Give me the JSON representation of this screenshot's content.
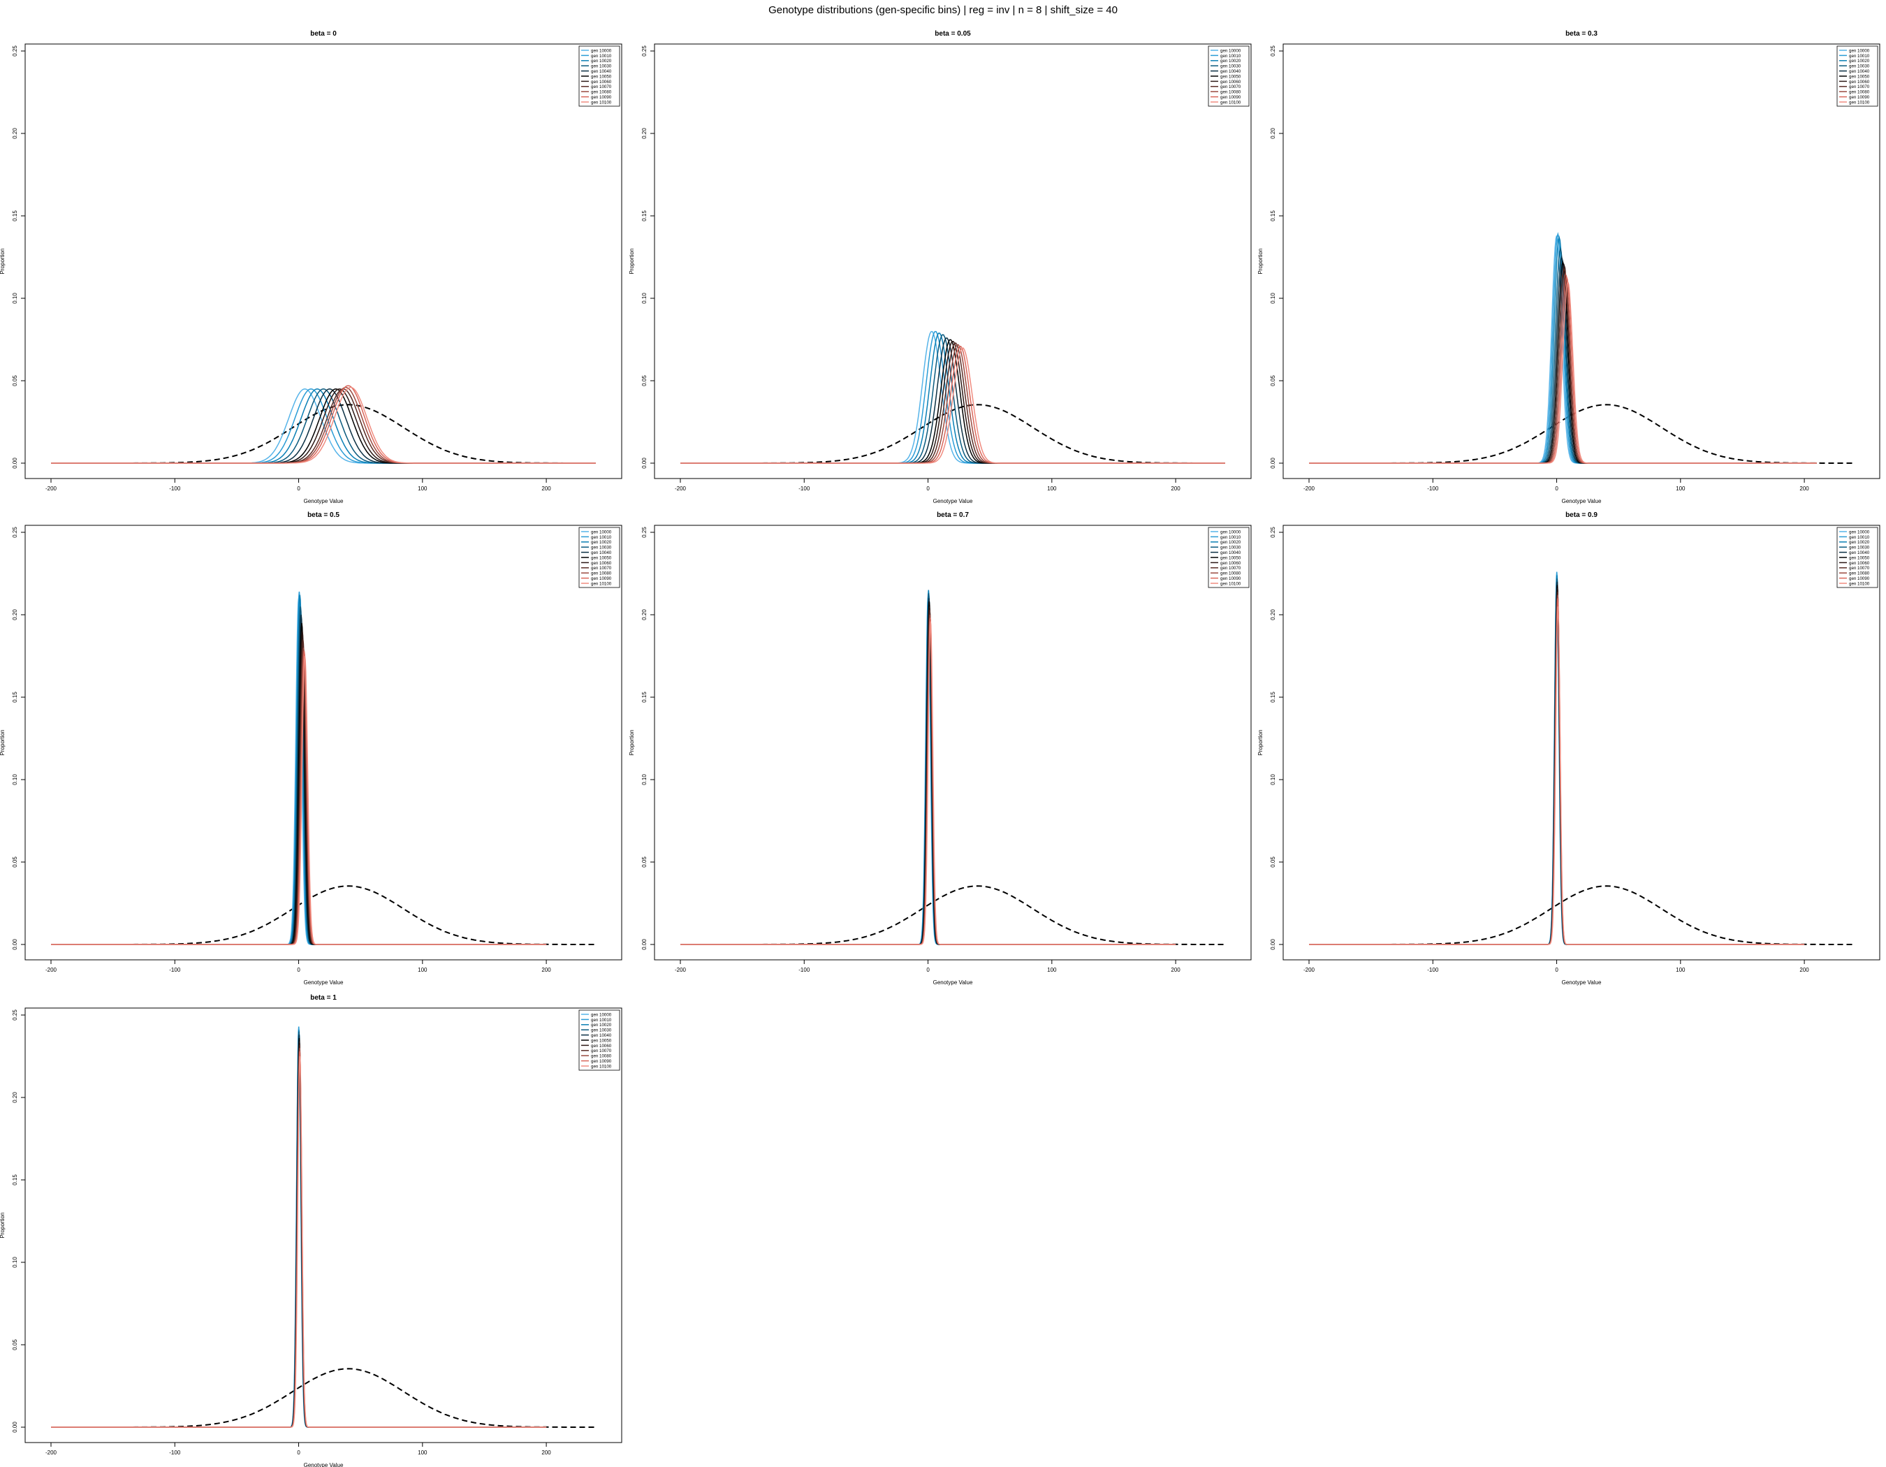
{
  "title": "Genotype distributions (gen-specific bins) | reg = inv | n = 8 | shift_size = 40",
  "legend_entries": [
    "gen 10000",
    "gen 10010",
    "gen 10020",
    "gen 10030",
    "gen 10040",
    "gen 10050",
    "gen 10060",
    "gen 10070",
    "gen 10080",
    "gen 10090",
    "gen 10100"
  ],
  "series_colors": [
    "#56B4E9",
    "#2A9CD6",
    "#0A7FB5",
    "#0A5A7E",
    "#0B3044",
    "#000000",
    "#2C1815",
    "#5A2C25",
    "#9A4A40",
    "#D9665A",
    "#F08C80"
  ],
  "reference_curve": {
    "style": "dashed",
    "color": "#000000",
    "mean": 40,
    "sd": 45,
    "xrange": [
      -200,
      240
    ]
  },
  "chart_data": [
    {
      "type": "line",
      "title": "beta = 0",
      "xlabel": "Genotype Value",
      "ylabel": "Proportion",
      "xlim": [
        -200,
        240
      ],
      "ylim": [
        0,
        0.25
      ],
      "xticks": [
        -200,
        -100,
        0,
        100,
        200
      ],
      "yticks": [
        "0.00",
        "0.05",
        "0.10",
        "0.15",
        "0.20",
        "0.25"
      ],
      "grid": false,
      "legend": "top-right",
      "x_extent": [
        -200,
        240
      ],
      "series_peaks": [
        0.045,
        0.045,
        0.045,
        0.045,
        0.045,
        0.045,
        0.045,
        0.045,
        0.046,
        0.047,
        0.046
      ],
      "series_means": [
        5,
        10,
        15,
        20,
        25,
        30,
        33,
        36,
        38,
        40,
        42
      ],
      "series_width": 13
    },
    {
      "type": "line",
      "title": "beta = 0.05",
      "xlabel": "Genotype Value",
      "ylabel": "Proportion",
      "xlim": [
        -200,
        240
      ],
      "ylim": [
        0,
        0.25
      ],
      "xticks": [
        -200,
        -100,
        0,
        100,
        200
      ],
      "yticks": [
        "0.00",
        "0.05",
        "0.10",
        "0.15",
        "0.20",
        "0.25"
      ],
      "grid": false,
      "legend": "top-right",
      "x_extent": [
        -200,
        240
      ],
      "series_peaks": [
        0.08,
        0.08,
        0.079,
        0.078,
        0.076,
        0.075,
        0.074,
        0.073,
        0.072,
        0.071,
        0.07
      ],
      "series_means": [
        3,
        6,
        9,
        12,
        15,
        18,
        20,
        22,
        24,
        26,
        28
      ],
      "series_width": 7.5
    },
    {
      "type": "line",
      "title": "beta = 0.3",
      "xlabel": "Genotype Value",
      "ylabel": "Proportion",
      "xlim": [
        -200,
        240
      ],
      "ylim": [
        0,
        0.25
      ],
      "xticks": [
        -200,
        -100,
        0,
        100,
        200
      ],
      "yticks": [
        "0.00",
        "0.05",
        "0.10",
        "0.15",
        "0.20",
        "0.25"
      ],
      "grid": false,
      "legend": "top-right",
      "x_extent": [
        -200,
        210
      ],
      "series_peaks": [
        0.138,
        0.139,
        0.137,
        0.13,
        0.125,
        0.122,
        0.12,
        0.118,
        0.115,
        0.113,
        0.11
      ],
      "series_means": [
        0,
        1,
        2,
        3,
        4,
        5,
        6,
        6,
        7,
        8,
        9
      ],
      "series_width": 4
    },
    {
      "type": "line",
      "title": "beta = 0.5",
      "xlabel": "Genotype Value",
      "ylabel": "Proportion",
      "xlim": [
        -200,
        240
      ],
      "ylim": [
        0,
        0.25
      ],
      "xticks": [
        -200,
        -100,
        0,
        100,
        200
      ],
      "yticks": [
        "0.00",
        "0.05",
        "0.10",
        "0.15",
        "0.20",
        "0.25"
      ],
      "grid": false,
      "legend": "top-right",
      "x_extent": [
        -200,
        200
      ],
      "series_peaks": [
        0.21,
        0.214,
        0.212,
        0.205,
        0.2,
        0.195,
        0.19,
        0.185,
        0.18,
        0.178,
        0.175
      ],
      "series_means": [
        0,
        0.5,
        1,
        1.5,
        2,
        2.5,
        3,
        3.5,
        4,
        4.5,
        5
      ],
      "series_width": 2.3
    },
    {
      "type": "line",
      "title": "beta = 0.7",
      "xlabel": "Genotype Value",
      "ylabel": "Proportion",
      "xlim": [
        -200,
        240
      ],
      "ylim": [
        0,
        0.25
      ],
      "xticks": [
        -200,
        -100,
        0,
        100,
        200
      ],
      "yticks": [
        "0.00",
        "0.05",
        "0.10",
        "0.15",
        "0.20",
        "0.25"
      ],
      "grid": false,
      "legend": "top-right",
      "x_extent": [
        -200,
        200
      ],
      "series_peaks": [
        0.21,
        0.212,
        0.215,
        0.213,
        0.21,
        0.208,
        0.205,
        0.203,
        0.2,
        0.198,
        0.196
      ],
      "series_means": [
        0,
        0.2,
        0.4,
        0.6,
        0.8,
        1,
        1.2,
        1.4,
        1.6,
        1.8,
        2
      ],
      "series_width": 1.9
    },
    {
      "type": "line",
      "title": "beta = 0.9",
      "xlabel": "Genotype Value",
      "ylabel": "Proportion",
      "xlim": [
        -200,
        240
      ],
      "ylim": [
        0,
        0.25
      ],
      "xticks": [
        -200,
        -100,
        0,
        100,
        200
      ],
      "yticks": [
        "0.00",
        "0.05",
        "0.10",
        "0.15",
        "0.20",
        "0.25"
      ],
      "grid": false,
      "legend": "top-right",
      "x_extent": [
        -200,
        200
      ],
      "series_peaks": [
        0.222,
        0.226,
        0.224,
        0.222,
        0.22,
        0.218,
        0.216,
        0.214,
        0.212,
        0.21,
        0.205
      ],
      "series_means": [
        0,
        0.1,
        0.2,
        0.3,
        0.4,
        0.5,
        0.6,
        0.7,
        0.8,
        0.9,
        1
      ],
      "series_width": 1.8
    },
    {
      "type": "line",
      "title": "beta = 1",
      "xlabel": "Genotype Value",
      "ylabel": "Proportion",
      "xlim": [
        -200,
        240
      ],
      "ylim": [
        0,
        0.25
      ],
      "xticks": [
        -200,
        -100,
        0,
        100,
        200
      ],
      "yticks": [
        "0.00",
        "0.05",
        "0.10",
        "0.15",
        "0.20",
        "0.25"
      ],
      "grid": false,
      "legend": "top-right",
      "x_extent": [
        -200,
        200
      ],
      "series_peaks": [
        0.24,
        0.243,
        0.241,
        0.24,
        0.238,
        0.236,
        0.234,
        0.232,
        0.23,
        0.228,
        0.225
      ],
      "series_means": [
        0,
        0.1,
        0.2,
        0.3,
        0.4,
        0.5,
        0.6,
        0.7,
        0.8,
        0.9,
        1
      ],
      "series_width": 1.7
    }
  ]
}
